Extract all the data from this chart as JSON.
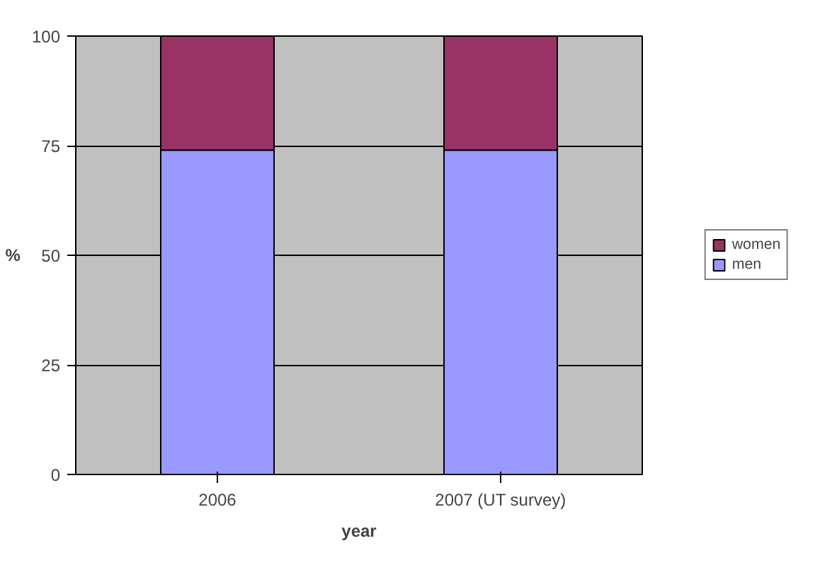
{
  "chart_data": {
    "type": "bar",
    "stacked": true,
    "categories": [
      "2006",
      "2007 (UT survey)"
    ],
    "xlabel": "year",
    "ylabel": "%",
    "series": [
      {
        "name": "men",
        "color": "#9999ff",
        "values": [
          74,
          74
        ]
      },
      {
        "name": "women",
        "color": "#993366",
        "values": [
          26,
          26
        ]
      }
    ],
    "ylim": [
      0,
      100
    ],
    "yticks": [
      0,
      25,
      50,
      75,
      100
    ],
    "grid": "y",
    "legend": "right"
  }
}
